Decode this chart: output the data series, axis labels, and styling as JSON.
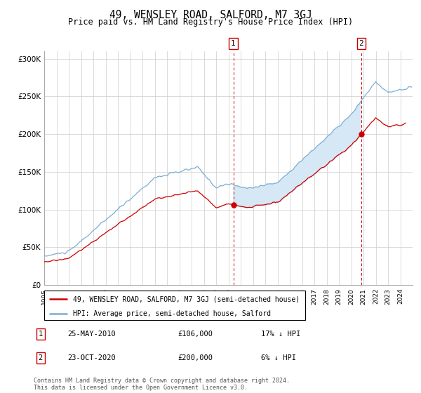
{
  "title": "49, WENSLEY ROAD, SALFORD, M7 3GJ",
  "subtitle": "Price paid vs. HM Land Registry's House Price Index (HPI)",
  "ylim": [
    0,
    310000
  ],
  "yticks": [
    0,
    50000,
    100000,
    150000,
    200000,
    250000,
    300000
  ],
  "ytick_labels": [
    "£0",
    "£50K",
    "£100K",
    "£150K",
    "£200K",
    "£250K",
    "£300K"
  ],
  "hpi_color": "#7bafd4",
  "price_color": "#cc0000",
  "fill_color": "#d6e8f5",
  "marker1_x": 2010.4,
  "marker1_y": 106000,
  "marker1_label": "1",
  "marker2_x": 2020.81,
  "marker2_y": 200000,
  "marker2_label": "2",
  "legend_line1": "49, WENSLEY ROAD, SALFORD, M7 3GJ (semi-detached house)",
  "legend_line2": "HPI: Average price, semi-detached house, Salford",
  "table_row1_num": "1",
  "table_row1_date": "25-MAY-2010",
  "table_row1_price": "£106,000",
  "table_row1_hpi": "17% ↓ HPI",
  "table_row2_num": "2",
  "table_row2_date": "23-OCT-2020",
  "table_row2_price": "£200,000",
  "table_row2_hpi": "6% ↓ HPI",
  "footnote": "Contains HM Land Registry data © Crown copyright and database right 2024.\nThis data is licensed under the Open Government Licence v3.0.",
  "bg_color": "#ffffff",
  "grid_color": "#cccccc",
  "xmin": 1995,
  "xmax": 2025
}
